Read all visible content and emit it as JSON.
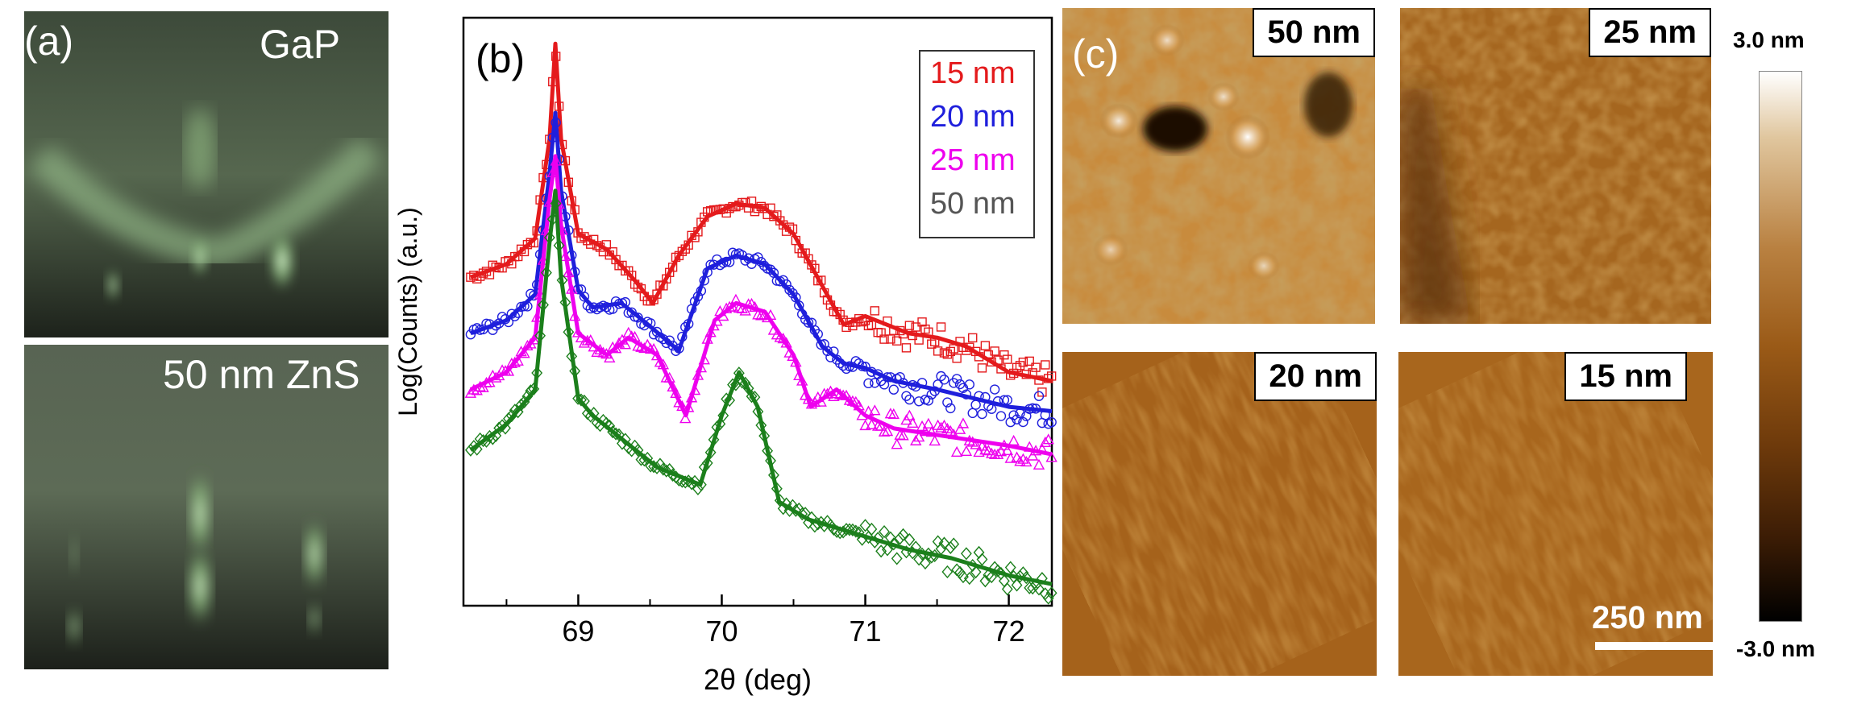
{
  "panel_a": {
    "tag": "(a)",
    "top_label": "GaP",
    "bottom_label": "50 nm ZnS"
  },
  "panel_b": {
    "tag": "(b)",
    "legend": [
      "15 nm",
      "20 nm",
      "25 nm",
      "50 nm"
    ]
  },
  "panel_c": {
    "tag": "(c)",
    "labels": [
      "50 nm",
      "25 nm",
      "20 nm",
      "15 nm"
    ],
    "colorbar_max": "3.0 nm",
    "colorbar_min": "-3.0 nm",
    "scale_bar": "250 nm"
  },
  "colors": {
    "s15": "#e41a1c",
    "s20": "#1f1fdc",
    "s25": "#ee00ee",
    "s50": "#1b7f1b",
    "legend50": "#555555"
  },
  "chart_data": {
    "type": "line",
    "xlabel": "2θ (deg)",
    "ylabel": "Log(Counts) (a.u.)",
    "xlim": [
      68.2,
      72.3
    ],
    "xticks": [
      69,
      70,
      71,
      72
    ],
    "yticks_shown": false,
    "grid": false,
    "legend_position": "top-right",
    "series": [
      {
        "name": "15 nm",
        "color": "#e41a1c",
        "marker": "square",
        "fit": [
          [
            68.25,
            6.6
          ],
          [
            68.5,
            6.75
          ],
          [
            68.7,
            7.05
          ],
          [
            68.8,
            8.2
          ],
          [
            68.84,
            9.3
          ],
          [
            68.88,
            8.2
          ],
          [
            69.0,
            7.1
          ],
          [
            69.2,
            6.92
          ],
          [
            69.4,
            6.55
          ],
          [
            69.52,
            6.3
          ],
          [
            69.7,
            6.85
          ],
          [
            69.9,
            7.3
          ],
          [
            70.1,
            7.45
          ],
          [
            70.3,
            7.4
          ],
          [
            70.5,
            7.1
          ],
          [
            70.7,
            6.5
          ],
          [
            70.85,
            6.05
          ],
          [
            71.0,
            6.15
          ],
          [
            71.15,
            6.05
          ],
          [
            71.3,
            5.95
          ],
          [
            71.5,
            5.9
          ],
          [
            71.7,
            5.8
          ],
          [
            72.0,
            5.5
          ],
          [
            72.3,
            5.4
          ]
        ]
      },
      {
        "name": "20 nm",
        "color": "#1f1fdc",
        "marker": "circle",
        "fit": [
          [
            68.25,
            5.95
          ],
          [
            68.5,
            6.1
          ],
          [
            68.7,
            6.4
          ],
          [
            68.8,
            7.8
          ],
          [
            68.84,
            8.5
          ],
          [
            68.88,
            7.6
          ],
          [
            69.0,
            6.45
          ],
          [
            69.1,
            6.25
          ],
          [
            69.3,
            6.3
          ],
          [
            69.45,
            6.1
          ],
          [
            69.7,
            5.75
          ],
          [
            69.9,
            6.7
          ],
          [
            70.1,
            6.85
          ],
          [
            70.3,
            6.75
          ],
          [
            70.5,
            6.4
          ],
          [
            70.7,
            5.8
          ],
          [
            70.85,
            5.6
          ],
          [
            71.0,
            5.55
          ],
          [
            71.2,
            5.4
          ],
          [
            71.5,
            5.3
          ],
          [
            72.0,
            5.1
          ],
          [
            72.3,
            5.05
          ]
        ]
      },
      {
        "name": "25 nm",
        "color": "#ee00ee",
        "marker": "triangle",
        "fit": [
          [
            68.25,
            5.3
          ],
          [
            68.5,
            5.5
          ],
          [
            68.7,
            5.9
          ],
          [
            68.8,
            7.5
          ],
          [
            68.84,
            8.0
          ],
          [
            68.88,
            7.2
          ],
          [
            69.0,
            5.95
          ],
          [
            69.2,
            5.7
          ],
          [
            69.35,
            5.9
          ],
          [
            69.55,
            5.7
          ],
          [
            69.75,
            5.0
          ],
          [
            69.95,
            6.1
          ],
          [
            70.1,
            6.3
          ],
          [
            70.3,
            6.2
          ],
          [
            70.5,
            5.7
          ],
          [
            70.62,
            5.1
          ],
          [
            70.8,
            5.3
          ],
          [
            71.0,
            5.0
          ],
          [
            71.2,
            4.85
          ],
          [
            71.6,
            4.75
          ],
          [
            72.0,
            4.65
          ],
          [
            72.3,
            4.55
          ]
        ]
      },
      {
        "name": "50 nm",
        "color": "#1b7f1b",
        "marker": "diamond",
        "fit": [
          [
            68.25,
            4.6
          ],
          [
            68.5,
            4.9
          ],
          [
            68.7,
            5.3
          ],
          [
            68.8,
            7.0
          ],
          [
            68.84,
            7.6
          ],
          [
            68.88,
            6.6
          ],
          [
            69.0,
            5.2
          ],
          [
            69.1,
            5.0
          ],
          [
            69.25,
            4.8
          ],
          [
            69.4,
            4.6
          ],
          [
            69.55,
            4.4
          ],
          [
            69.7,
            4.3
          ],
          [
            69.85,
            4.2
          ],
          [
            70.0,
            5.0
          ],
          [
            70.12,
            5.5
          ],
          [
            70.25,
            5.1
          ],
          [
            70.4,
            4.0
          ],
          [
            70.6,
            3.8
          ],
          [
            70.8,
            3.7
          ],
          [
            71.0,
            3.6
          ],
          [
            71.3,
            3.45
          ],
          [
            71.6,
            3.35
          ],
          [
            72.0,
            3.15
          ],
          [
            72.3,
            3.05
          ]
        ]
      }
    ]
  }
}
